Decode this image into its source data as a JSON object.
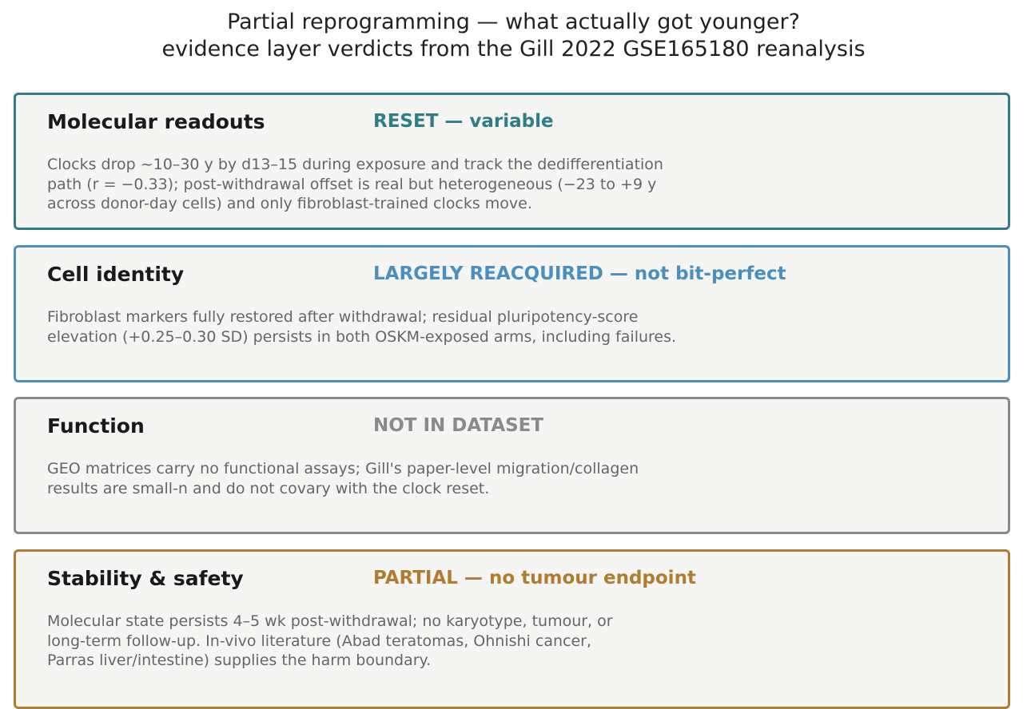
{
  "title": {
    "line1": "Partial reprogramming — what actually got younger?",
    "line2": "evidence layer verdicts from the Gill 2022 GSE165180 reanalysis"
  },
  "colors": {
    "molecular": "#2e7d87",
    "identity": "#4a8fc0",
    "function": "#8a8a8a",
    "safety": "#b07c30",
    "card_background": "#f5f5f3"
  },
  "cards": [
    {
      "heading": "Molecular readouts",
      "verdict": "RESET — variable",
      "body": [
        "Clocks drop ~10–30 y by d13–15 during exposure and track the dedifferentiation",
        "path (r = −0.33); post-withdrawal offset is real but heterogeneous (−23 to +9 y",
        "across donor-day cells) and only fibroblast-trained clocks move."
      ]
    },
    {
      "heading": "Cell identity",
      "verdict": "LARGELY REACQUIRED — not bit-perfect",
      "body": [
        "Fibroblast markers fully restored after withdrawal; residual pluripotency-score",
        "elevation (+0.25–0.30 SD) persists in both OSKM-exposed arms, including failures."
      ]
    },
    {
      "heading": "Function",
      "verdict": "NOT IN DATASET",
      "body": [
        "GEO matrices carry no functional assays; Gill's paper-level migration/collagen",
        "results are small-n and do not covary with the clock reset."
      ]
    },
    {
      "heading": "Stability & safety",
      "verdict": "PARTIAL — no tumour endpoint",
      "body": [
        "Molecular state persists 4–5 wk post-withdrawal; no karyotype, tumour, or",
        "long-term follow-up. In-vivo literature (Abad teratomas, Ohnishi cancer,",
        "Parras liver/intestine) supplies the harm boundary."
      ]
    }
  ]
}
